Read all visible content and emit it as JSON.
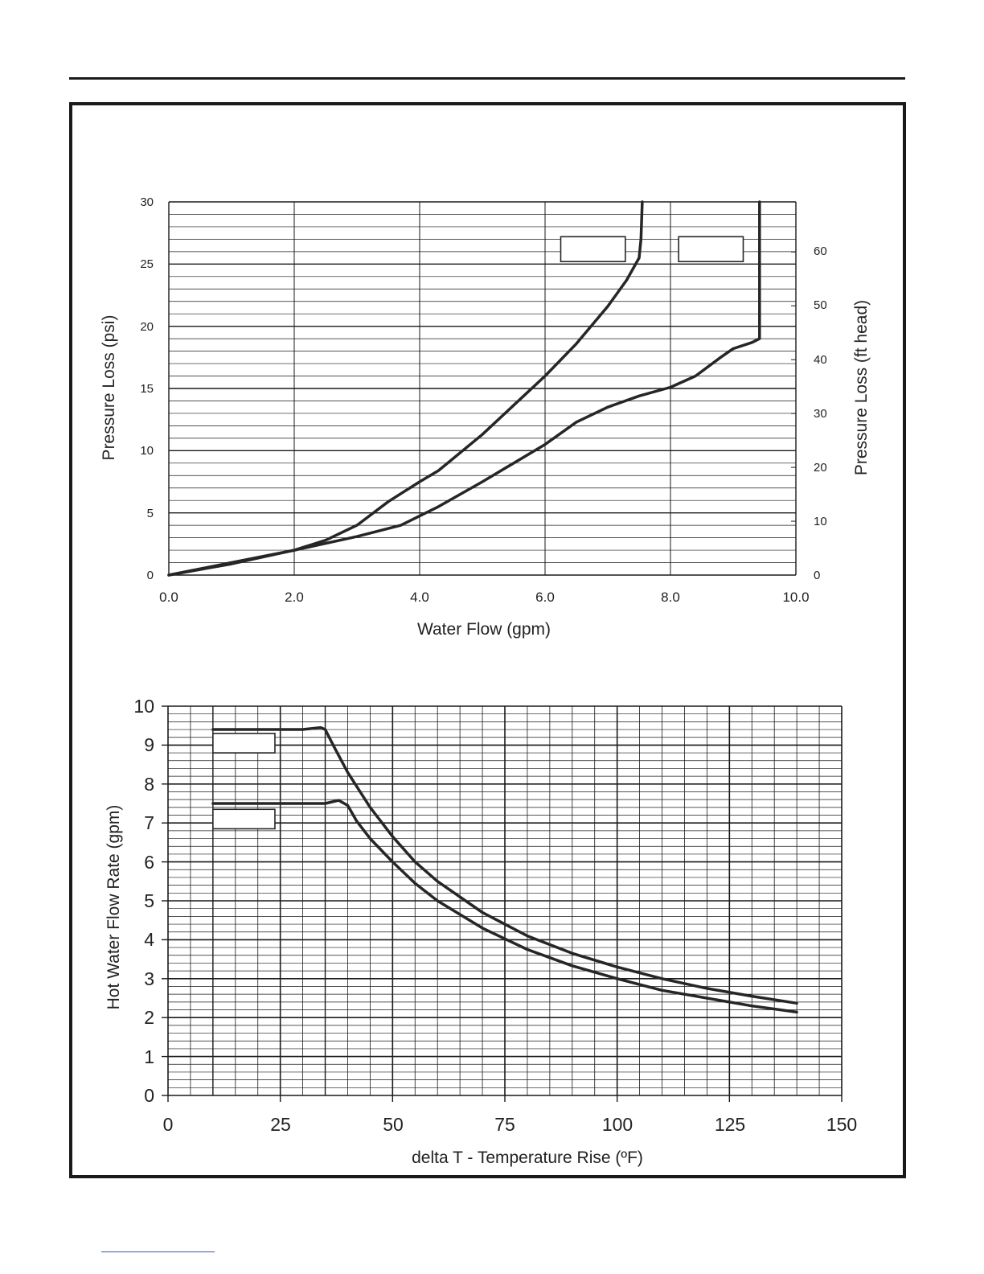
{
  "colors": {
    "line": "#262626",
    "grid": "#1a1a1a",
    "frame": "#1a1a1a",
    "footer_link": "#3a4fb0"
  },
  "chart_data": [
    {
      "type": "line",
      "title": "",
      "xlabel": "Water Flow (gpm)",
      "ylabel": "Pressure Loss (psi)",
      "y2label": "Pressure Loss (ft head)",
      "xlim": [
        0,
        10
      ],
      "ylim": [
        0,
        30
      ],
      "y2lim": [
        0,
        69.3
      ],
      "x_ticks": [
        "0.0",
        "2.0",
        "4.0",
        "6.0",
        "8.0",
        "10.0"
      ],
      "y_ticks": [
        "0",
        "5",
        "10",
        "15",
        "20",
        "25",
        "30"
      ],
      "y2_ticks": [
        "0",
        "10",
        "20",
        "30",
        "40",
        "50",
        "60"
      ],
      "grid": true,
      "series": [
        {
          "legend_box": "blank",
          "points": [
            [
              0,
              0
            ],
            [
              1,
              0.9
            ],
            [
              2,
              2
            ],
            [
              2.5,
              2.8
            ],
            [
              3,
              4
            ],
            [
              3.5,
              5.9
            ],
            [
              4,
              7.5
            ],
            [
              4.3,
              8.4
            ],
            [
              5,
              11.3
            ],
            [
              6,
              16
            ],
            [
              6.5,
              18.6
            ],
            [
              7,
              21.6
            ],
            [
              7.3,
              23.7
            ],
            [
              7.5,
              25.5
            ],
            [
              7.53,
              27
            ],
            [
              7.55,
              30
            ]
          ]
        },
        {
          "legend_box": "blank",
          "points": [
            [
              0,
              0
            ],
            [
              1,
              1
            ],
            [
              2,
              2
            ],
            [
              3,
              3.1
            ],
            [
              3.7,
              4
            ],
            [
              4.3,
              5.5
            ],
            [
              5,
              7.5
            ],
            [
              6,
              10.5
            ],
            [
              6.5,
              12.3
            ],
            [
              7,
              13.5
            ],
            [
              7.5,
              14.4
            ],
            [
              8,
              15.1
            ],
            [
              8.4,
              16
            ],
            [
              8.8,
              17.5
            ],
            [
              9,
              18.2
            ],
            [
              9.3,
              18.7
            ],
            [
              9.42,
              19
            ],
            [
              9.42,
              30
            ]
          ]
        }
      ]
    },
    {
      "type": "line",
      "title": "",
      "xlabel": "delta T - Temperature Rise (ºF)",
      "ylabel": "Hot Water Flow Rate (gpm)",
      "xlim": [
        0,
        150
      ],
      "ylim": [
        0,
        10
      ],
      "x_ticks": [
        "0",
        "25",
        "50",
        "75",
        "100",
        "125",
        "150"
      ],
      "y_ticks": [
        "0",
        "1",
        "2",
        "3",
        "4",
        "5",
        "6",
        "7",
        "8",
        "9",
        "10"
      ],
      "grid": true,
      "series": [
        {
          "legend_box": "blank",
          "points": [
            [
              10,
              9.4
            ],
            [
              30,
              9.4
            ],
            [
              34,
              9.45
            ],
            [
              35,
              9.4
            ],
            [
              37,
              8.95
            ],
            [
              40,
              8.3
            ],
            [
              45,
              7.4
            ],
            [
              50,
              6.65
            ],
            [
              55,
              6
            ],
            [
              60,
              5.5
            ],
            [
              70,
              4.7
            ],
            [
              80,
              4.1
            ],
            [
              90,
              3.65
            ],
            [
              100,
              3.3
            ],
            [
              110,
              3
            ],
            [
              120,
              2.75
            ],
            [
              130,
              2.55
            ],
            [
              140,
              2.37
            ]
          ]
        },
        {
          "legend_box": "blank",
          "points": [
            [
              10,
              7.5
            ],
            [
              35,
              7.5
            ],
            [
              38,
              7.58
            ],
            [
              40,
              7.45
            ],
            [
              42,
              7.05
            ],
            [
              45,
              6.6
            ],
            [
              50,
              6
            ],
            [
              55,
              5.45
            ],
            [
              60,
              5
            ],
            [
              70,
              4.3
            ],
            [
              80,
              3.75
            ],
            [
              90,
              3.33
            ],
            [
              100,
              3
            ],
            [
              110,
              2.7
            ],
            [
              120,
              2.5
            ],
            [
              130,
              2.3
            ],
            [
              140,
              2.14
            ]
          ]
        }
      ]
    }
  ]
}
